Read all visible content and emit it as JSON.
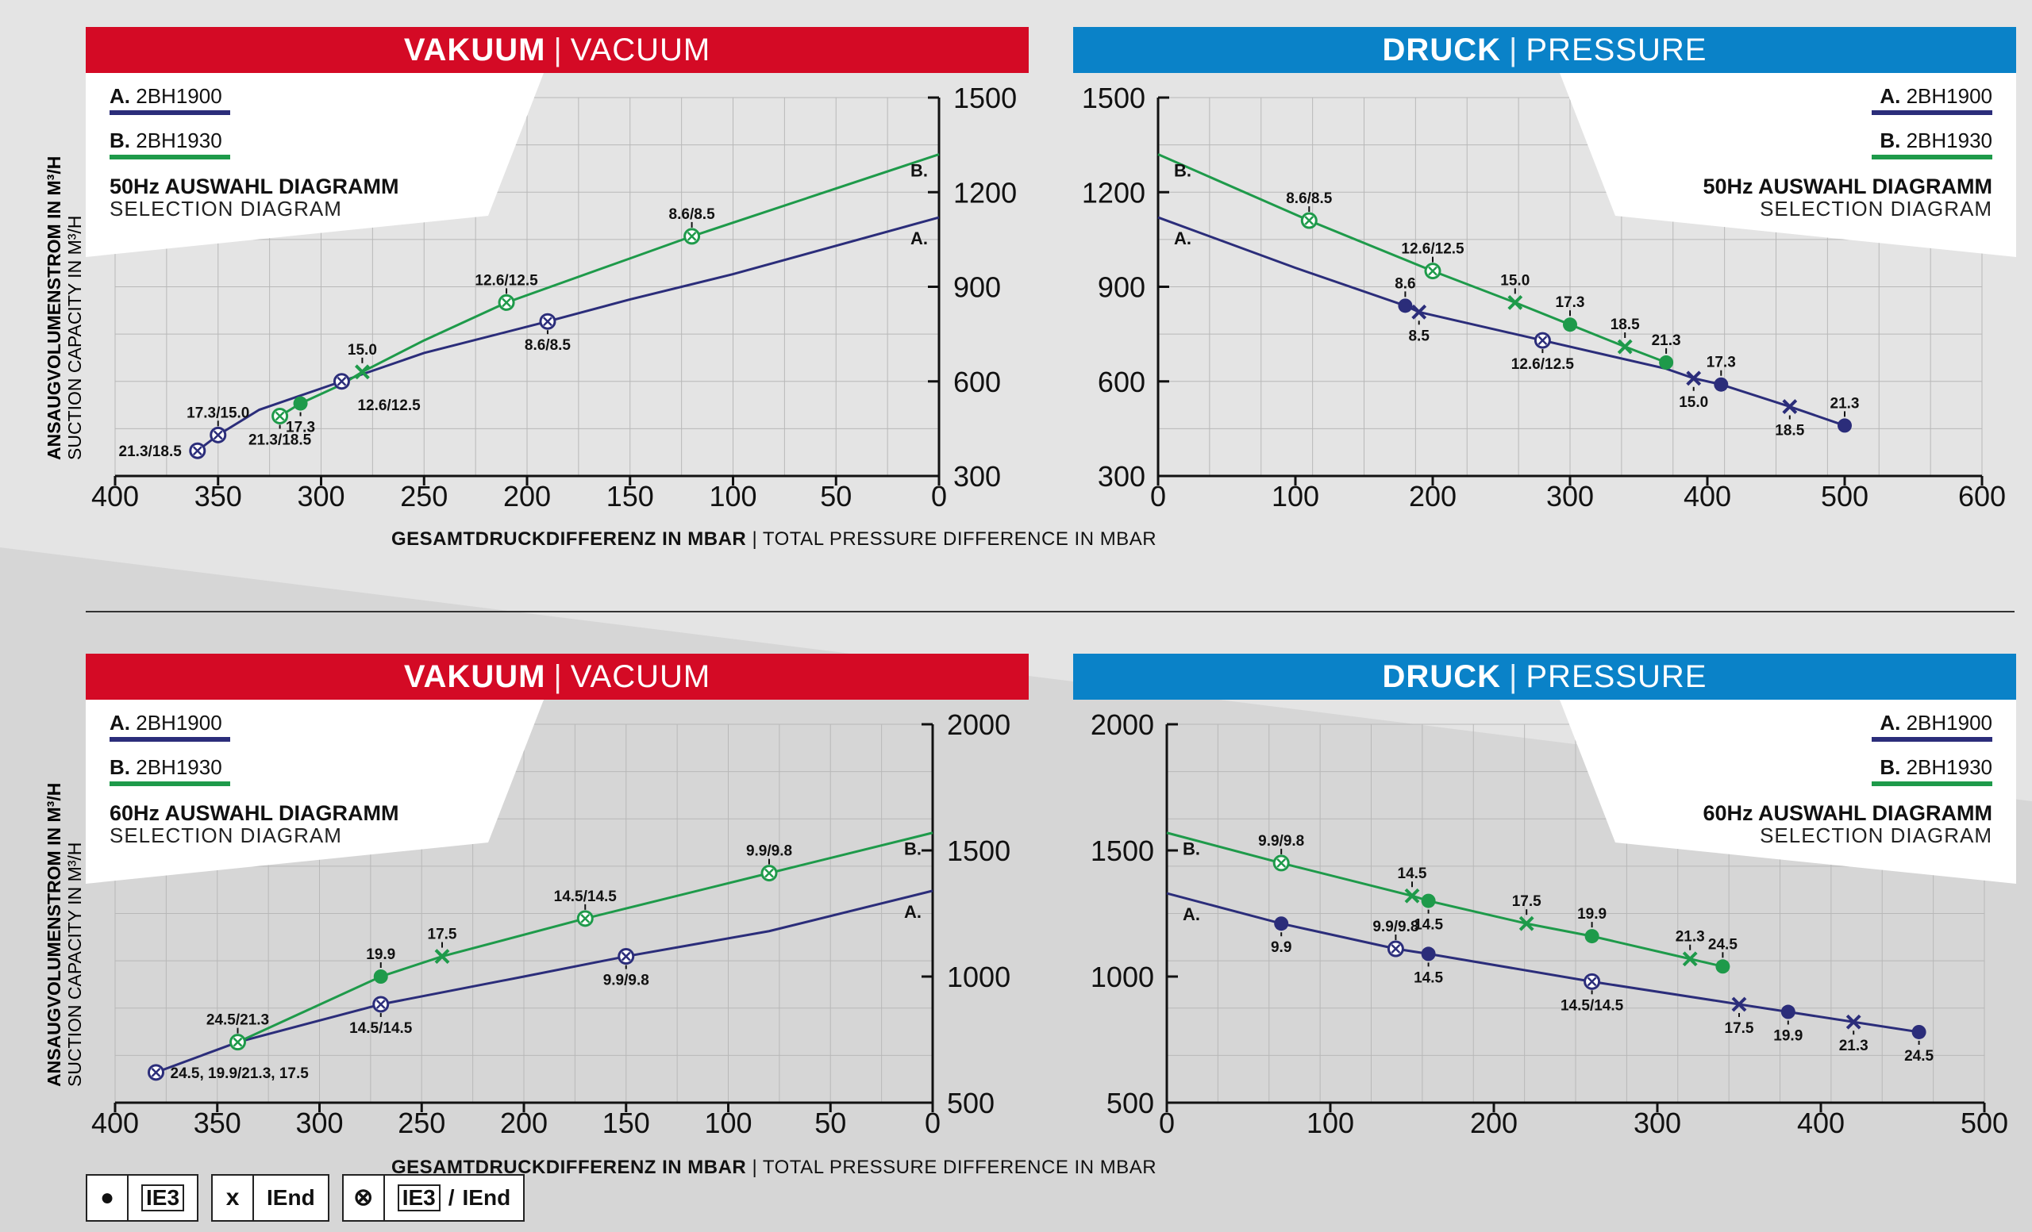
{
  "colors": {
    "red": "#d40a25",
    "blue": "#0a82c8",
    "navy": "#2b2d7a",
    "green": "#1e9a4a"
  },
  "y_axis_label": {
    "de": "ANSAUGVOLUMENSTROM IN M³/H",
    "en": "SUCTION CAPACITY IN M³/H"
  },
  "x_axis_label": {
    "de": "GESAMTDRUCKDIFFERENZ IN MBAR",
    "en": "TOTAL PRESSURE DIFFERENCE IN MBAR",
    "sep": "|"
  },
  "legend": {
    "ie3": {
      "symbol": "●",
      "label": "IE3"
    },
    "iend": {
      "symbol": "x",
      "label": "IEnd"
    },
    "both": {
      "symbol": "⊗",
      "label_a": "IE3",
      "slash": "/",
      "label_b": "IEnd"
    }
  },
  "chart_data": [
    {
      "id": "vac50",
      "type": "line",
      "title": {
        "de": "VAKUUM",
        "en": "VACUUM",
        "sep": "|"
      },
      "inset": {
        "a_prefix": "A.",
        "a_name": "2BH1900",
        "b_prefix": "B.",
        "b_name": "2BH1930",
        "line1": "50Hz AUSWAHL DIAGRAMM",
        "line2": "SELECTION DIAGRAM"
      },
      "xlim": [
        400,
        0
      ],
      "ylim": [
        300,
        1500
      ],
      "xticks": [
        "400",
        "350",
        "300",
        "250",
        "200",
        "150",
        "100",
        "50",
        "0"
      ],
      "yticks": [
        "300",
        "600",
        "900",
        "1200",
        "1500"
      ],
      "series": [
        {
          "name": "2BH1900",
          "tag": "A.",
          "x": [
            360,
            350,
            330,
            290,
            250,
            190,
            150,
            100,
            50,
            0
          ],
          "y": [
            380,
            430,
            510,
            600,
            690,
            790,
            860,
            940,
            1030,
            1120
          ]
        },
        {
          "name": "2BH1930",
          "tag": "B.",
          "x": [
            320,
            310,
            290,
            280,
            250,
            210,
            150,
            120,
            60,
            0
          ],
          "y": [
            490,
            530,
            590,
            630,
            730,
            850,
            990,
            1060,
            1190,
            1320
          ]
        }
      ],
      "markers": [
        {
          "s": 0,
          "x": 360,
          "y": 380,
          "type": "both",
          "label": "21.3/18.5",
          "pos": "w"
        },
        {
          "s": 0,
          "x": 350,
          "y": 430,
          "type": "both",
          "label": "17.3/15.0",
          "pos": "n"
        },
        {
          "s": 0,
          "x": 290,
          "y": 600,
          "type": "both",
          "label": "12.6/12.5",
          "pos": "se"
        },
        {
          "s": 0,
          "x": 190,
          "y": 790,
          "type": "both",
          "label": "8.6/8.5",
          "pos": "s"
        },
        {
          "s": 1,
          "x": 320,
          "y": 490,
          "type": "both",
          "label": "21.3/18.5",
          "pos": "s"
        },
        {
          "s": 1,
          "x": 310,
          "y": 530,
          "type": "ie3",
          "label": "17.3",
          "pos": "s"
        },
        {
          "s": 1,
          "x": 280,
          "y": 630,
          "type": "iend",
          "label": "15.0",
          "pos": "n"
        },
        {
          "s": 1,
          "x": 210,
          "y": 850,
          "type": "both",
          "label": "12.6/12.5",
          "pos": "n"
        },
        {
          "s": 1,
          "x": 120,
          "y": 1060,
          "type": "both",
          "label": "8.6/8.5",
          "pos": "n"
        }
      ]
    },
    {
      "id": "pre50",
      "type": "line",
      "title": {
        "de": "DRUCK",
        "en": "PRESSURE",
        "sep": "|"
      },
      "inset": {
        "a_prefix": "A.",
        "a_name": "2BH1900",
        "b_prefix": "B.",
        "b_name": "2BH1930",
        "line1": "50Hz AUSWAHL DIAGRAMM",
        "line2": "SELECTION DIAGRAM"
      },
      "xlim": [
        0,
        600
      ],
      "ylim": [
        300,
        1500
      ],
      "xticks": [
        "0",
        "100",
        "200",
        "300",
        "400",
        "500",
        "600"
      ],
      "yticks": [
        "300",
        "600",
        "900",
        "1200",
        "1500"
      ],
      "series": [
        {
          "name": "2BH1900",
          "tag": "A.",
          "x": [
            0,
            100,
            180,
            190,
            280,
            370,
            390,
            410,
            460,
            500
          ],
          "y": [
            1120,
            960,
            840,
            820,
            730,
            640,
            610,
            590,
            520,
            460
          ]
        },
        {
          "name": "2BH1930",
          "tag": "B.",
          "x": [
            0,
            110,
            200,
            260,
            300,
            340,
            370
          ],
          "y": [
            1320,
            1110,
            950,
            850,
            780,
            710,
            660
          ]
        }
      ],
      "markers": [
        {
          "s": 0,
          "x": 180,
          "y": 840,
          "type": "ie3",
          "label": "8.6",
          "pos": "n"
        },
        {
          "s": 0,
          "x": 190,
          "y": 820,
          "type": "iend",
          "label": "8.5",
          "pos": "s"
        },
        {
          "s": 0,
          "x": 280,
          "y": 730,
          "type": "both",
          "label": "12.6/12.5",
          "pos": "s"
        },
        {
          "s": 0,
          "x": 390,
          "y": 610,
          "type": "iend",
          "label": "15.0",
          "pos": "s"
        },
        {
          "s": 0,
          "x": 410,
          "y": 590,
          "type": "ie3",
          "label": "17.3",
          "pos": "n"
        },
        {
          "s": 0,
          "x": 460,
          "y": 520,
          "type": "iend",
          "label": "18.5",
          "pos": "s"
        },
        {
          "s": 0,
          "x": 500,
          "y": 460,
          "type": "ie3",
          "label": "21.3",
          "pos": "n"
        },
        {
          "s": 1,
          "x": 110,
          "y": 1110,
          "type": "both",
          "label": "8.6/8.5",
          "pos": "n"
        },
        {
          "s": 1,
          "x": 200,
          "y": 950,
          "type": "both",
          "label": "12.6/12.5",
          "pos": "n"
        },
        {
          "s": 1,
          "x": 260,
          "y": 850,
          "type": "iend",
          "label": "15.0",
          "pos": "n"
        },
        {
          "s": 1,
          "x": 300,
          "y": 780,
          "type": "ie3",
          "label": "17.3",
          "pos": "n"
        },
        {
          "s": 1,
          "x": 340,
          "y": 710,
          "type": "iend",
          "label": "18.5",
          "pos": "n"
        },
        {
          "s": 1,
          "x": 370,
          "y": 660,
          "type": "ie3",
          "label": "21.3",
          "pos": "n"
        }
      ]
    },
    {
      "id": "vac60",
      "type": "line",
      "title": {
        "de": "VAKUUM",
        "en": "VACUUM",
        "sep": "|"
      },
      "inset": {
        "a_prefix": "A.",
        "a_name": "2BH1900",
        "b_prefix": "B.",
        "b_name": "2BH1930",
        "line1": "60Hz AUSWAHL DIAGRAMM",
        "line2": "SELECTION DIAGRAM"
      },
      "xlim": [
        400,
        0
      ],
      "ylim": [
        500,
        2000
      ],
      "xticks": [
        "400",
        "350",
        "300",
        "250",
        "200",
        "150",
        "100",
        "50",
        "0"
      ],
      "yticks": [
        "500",
        "1000",
        "1500",
        "2000"
      ],
      "series": [
        {
          "name": "2BH1900",
          "tag": "A.",
          "x": [
            380,
            340,
            270,
            200,
            150,
            80,
            0
          ],
          "y": [
            620,
            740,
            890,
            1000,
            1080,
            1180,
            1340
          ]
        },
        {
          "name": "2BH1930",
          "tag": "B.",
          "x": [
            340,
            270,
            240,
            170,
            80,
            0
          ],
          "y": [
            740,
            1000,
            1080,
            1230,
            1410,
            1570
          ]
        }
      ],
      "markers": [
        {
          "s": 0,
          "x": 380,
          "y": 620,
          "type": "both",
          "label": "24.5, 19.9/21.3, 17.5",
          "pos": "e"
        },
        {
          "s": 0,
          "x": 270,
          "y": 890,
          "type": "both",
          "label": "14.5/14.5",
          "pos": "s"
        },
        {
          "s": 0,
          "x": 150,
          "y": 1080,
          "type": "both",
          "label": "9.9/9.8",
          "pos": "s"
        },
        {
          "s": 1,
          "x": 340,
          "y": 740,
          "type": "both",
          "label": "24.5/21.3",
          "pos": "n"
        },
        {
          "s": 1,
          "x": 270,
          "y": 1000,
          "type": "ie3",
          "label": "19.9",
          "pos": "n"
        },
        {
          "s": 1,
          "x": 240,
          "y": 1080,
          "type": "iend",
          "label": "17.5",
          "pos": "n"
        },
        {
          "s": 1,
          "x": 170,
          "y": 1230,
          "type": "both",
          "label": "14.5/14.5",
          "pos": "n"
        },
        {
          "s": 1,
          "x": 80,
          "y": 1410,
          "type": "both",
          "label": "9.9/9.8",
          "pos": "n"
        }
      ]
    },
    {
      "id": "pre60",
      "type": "line",
      "title": {
        "de": "DRUCK",
        "en": "PRESSURE",
        "sep": "|"
      },
      "inset": {
        "a_prefix": "A.",
        "a_name": "2BH1900",
        "b_prefix": "B.",
        "b_name": "2BH1930",
        "line1": "60Hz AUSWAHL DIAGRAMM",
        "line2": "SELECTION DIAGRAM"
      },
      "xlim": [
        0,
        500
      ],
      "ylim": [
        500,
        2000
      ],
      "xticks": [
        "0",
        "100",
        "200",
        "300",
        "400",
        "500"
      ],
      "yticks": [
        "500",
        "1000",
        "1500",
        "2000"
      ],
      "series": [
        {
          "name": "2BH1900",
          "tag": "A.",
          "x": [
            0,
            70,
            140,
            160,
            260,
            350,
            380,
            420,
            460
          ],
          "y": [
            1330,
            1210,
            1110,
            1090,
            980,
            890,
            860,
            820,
            780
          ]
        },
        {
          "name": "2BH1930",
          "tag": "B.",
          "x": [
            0,
            70,
            150,
            160,
            220,
            260,
            320,
            340
          ],
          "y": [
            1570,
            1450,
            1320,
            1300,
            1210,
            1160,
            1070,
            1040
          ]
        }
      ],
      "markers": [
        {
          "s": 0,
          "x": 70,
          "y": 1210,
          "type": "ie3",
          "label": "9.9",
          "pos": "s"
        },
        {
          "s": 0,
          "x": 140,
          "y": 1110,
          "type": "both",
          "label": "9.9/9.8",
          "pos": "n"
        },
        {
          "s": 0,
          "x": 160,
          "y": 1090,
          "type": "ie3",
          "label": "14.5",
          "pos": "s"
        },
        {
          "s": 0,
          "x": 260,
          "y": 980,
          "type": "both",
          "label": "14.5/14.5",
          "pos": "s"
        },
        {
          "s": 0,
          "x": 350,
          "y": 890,
          "type": "iend",
          "label": "17.5",
          "pos": "s"
        },
        {
          "s": 0,
          "x": 380,
          "y": 860,
          "type": "ie3",
          "label": "19.9",
          "pos": "s"
        },
        {
          "s": 0,
          "x": 420,
          "y": 820,
          "type": "iend",
          "label": "21.3",
          "pos": "s"
        },
        {
          "s": 0,
          "x": 460,
          "y": 780,
          "type": "ie3",
          "label": "24.5",
          "pos": "s"
        },
        {
          "s": 1,
          "x": 70,
          "y": 1450,
          "type": "both",
          "label": "9.9/9.8",
          "pos": "n"
        },
        {
          "s": 1,
          "x": 150,
          "y": 1320,
          "type": "iend",
          "label": "14.5",
          "pos": "n"
        },
        {
          "s": 1,
          "x": 160,
          "y": 1300,
          "type": "ie3",
          "label": "14.5",
          "pos": "s"
        },
        {
          "s": 1,
          "x": 220,
          "y": 1210,
          "type": "iend",
          "label": "17.5",
          "pos": "n"
        },
        {
          "s": 1,
          "x": 260,
          "y": 1160,
          "type": "ie3",
          "label": "19.9",
          "pos": "n"
        },
        {
          "s": 1,
          "x": 320,
          "y": 1070,
          "type": "iend",
          "label": "21.3",
          "pos": "n"
        },
        {
          "s": 1,
          "x": 340,
          "y": 1040,
          "type": "ie3",
          "label": "24.5",
          "pos": "n"
        }
      ]
    }
  ]
}
